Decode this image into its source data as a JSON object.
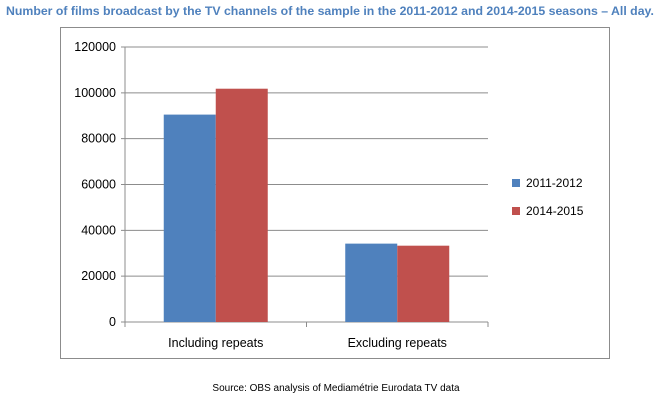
{
  "title": "Number of films broadcast by the TV channels of the sample in the 2011-2012 and 2014-2015 seasons – All day.",
  "source": "Source: OBS analysis of Mediamétrie Eurodata TV data",
  "colors": {
    "title": "#4f81bd",
    "series_2011": "#4f81bd",
    "series_2014": "#c0504d",
    "gridline": "#8c8c8c"
  },
  "chart_data": {
    "type": "bar",
    "categories": [
      "Including repeats",
      "Excluding repeats"
    ],
    "series": [
      {
        "name": "2011-2012",
        "values": [
          90500,
          34200
        ],
        "color": "#4f81bd"
      },
      {
        "name": "2014-2015",
        "values": [
          101800,
          33300
        ],
        "color": "#c0504d"
      }
    ],
    "ylim": [
      0,
      120000
    ],
    "yticks": [
      0,
      20000,
      40000,
      60000,
      80000,
      100000,
      120000
    ],
    "grid": true,
    "legend_position": "right"
  }
}
